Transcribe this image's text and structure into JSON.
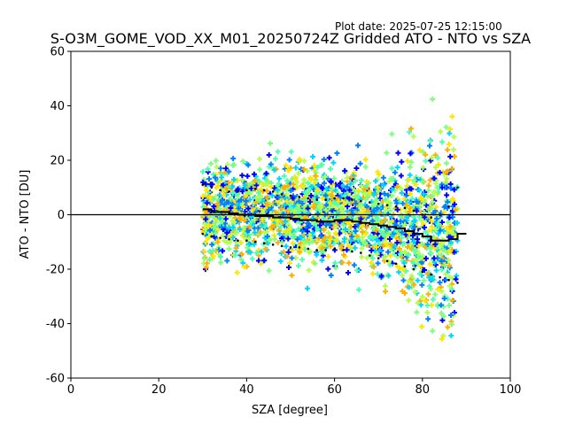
{
  "header": {
    "plot_date": "Plot date: 2025-07-25 12:15:00",
    "title": "S-O3M_GOME_VOD_XX_M01_20250724Z Gridded ATO - NTO vs SZA"
  },
  "chart_data": {
    "type": "scatter",
    "title": "S-O3M_GOME_VOD_XX_M01_20250724Z Gridded ATO - NTO vs SZA",
    "xlabel": "SZA [degree]",
    "ylabel": "ATO - NTO [DU]",
    "xlim": [
      0,
      100
    ],
    "ylim": [
      -60,
      60
    ],
    "xticks": [
      0,
      20,
      40,
      60,
      80,
      100
    ],
    "yticks": [
      -60,
      -40,
      -20,
      0,
      20,
      40,
      60
    ],
    "grid": false,
    "reference_line": 0,
    "scatter_sza_range": [
      30,
      88
    ],
    "scatter_colors": [
      "#0000ff",
      "#0080ff",
      "#00d4ff",
      "#4dffb3",
      "#7dff7d",
      "#b3ff4d",
      "#ffe600",
      "#ffb000"
    ],
    "series": [
      {
        "style": "black-step",
        "x": [
          30,
          32,
          34,
          36,
          38,
          40,
          42,
          44,
          46,
          48,
          50,
          52,
          54,
          56,
          58,
          60,
          62,
          64,
          66,
          68,
          70,
          72,
          74,
          76,
          78,
          80,
          82,
          84,
          86,
          88
        ],
        "y": [
          2,
          1,
          1,
          0.5,
          0,
          0,
          -0.5,
          -0.5,
          -1,
          -1,
          -1.5,
          -2,
          -2,
          -2.5,
          -2.5,
          -2,
          -2,
          -2.5,
          -3,
          -3.5,
          -4,
          -4.5,
          -5,
          -6,
          -7,
          -8,
          -9.5,
          -9.5,
          -9,
          -7
        ]
      },
      {
        "style": "black-dotted-upper",
        "x": [
          30,
          32,
          34,
          36,
          38,
          40,
          42,
          44,
          46,
          48,
          50,
          52,
          54,
          56,
          58,
          60,
          62,
          64,
          66,
          68,
          70,
          72,
          74,
          76,
          78,
          80,
          82,
          84,
          86,
          88
        ],
        "y": [
          11,
          10,
          9,
          8.5,
          8.5,
          9,
          9.5,
          9,
          8.5,
          7.5,
          7,
          6.5,
          6,
          5.5,
          5.5,
          6,
          6,
          5.5,
          5,
          4.5,
          4,
          3.5,
          3,
          2.5,
          1.5,
          0,
          -1,
          0,
          3,
          10
        ]
      },
      {
        "style": "black-dotted-lower",
        "x": [
          30,
          32,
          34,
          36,
          38,
          40,
          42,
          44,
          46,
          48,
          50,
          52,
          54,
          56,
          58,
          60,
          62,
          64,
          66,
          68,
          70,
          72,
          74,
          76,
          78,
          80,
          82,
          84,
          86,
          88
        ],
        "y": [
          -7,
          -8,
          -8.5,
          -9,
          -9.5,
          -9.5,
          -10,
          -10.5,
          -11,
          -11.5,
          -12,
          -12,
          -12.5,
          -13,
          -13,
          -12.5,
          -13,
          -13.5,
          -14,
          -15,
          -16,
          -17,
          -18,
          -19,
          -20,
          -21,
          -22,
          -23,
          -24,
          -25
        ]
      }
    ]
  }
}
